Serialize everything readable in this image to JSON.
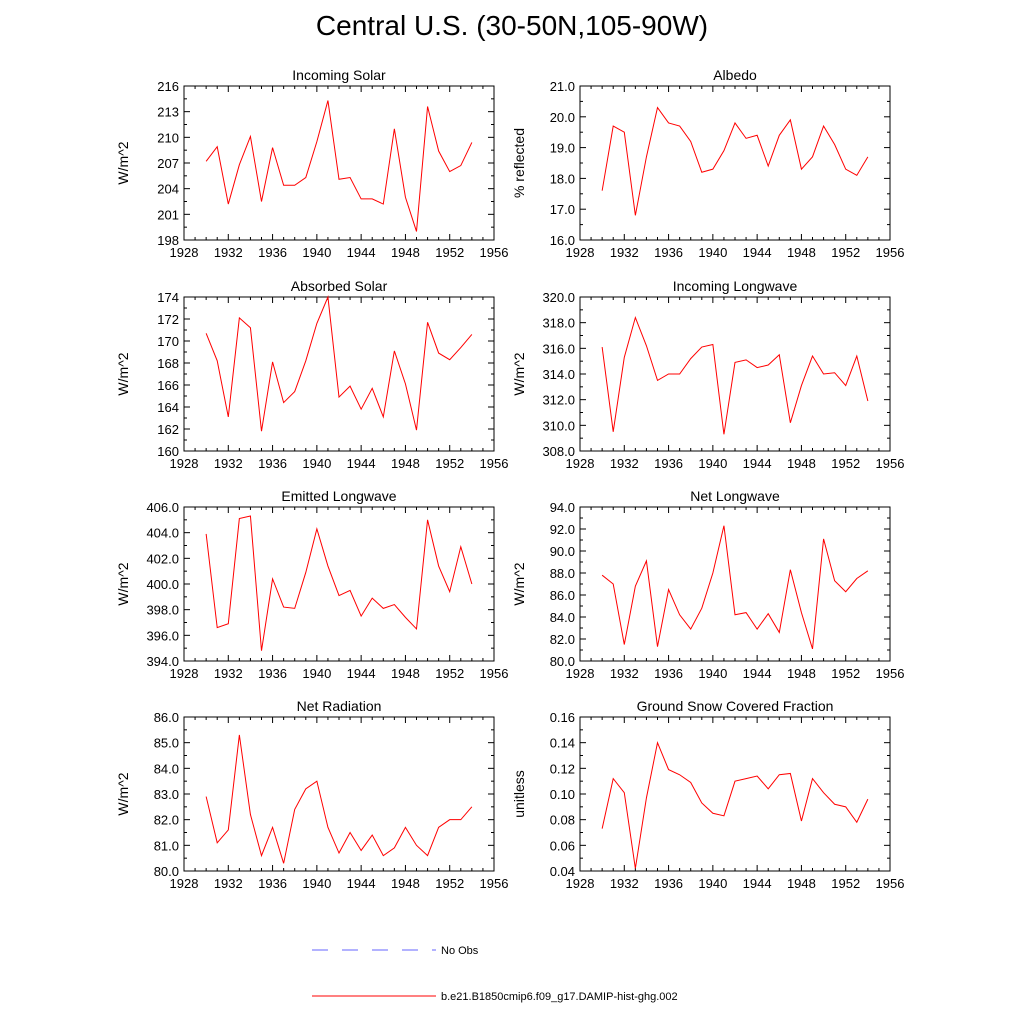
{
  "figure": {
    "title": "Central U.S. (30-50N,105-90W)"
  },
  "legend": {
    "entries": [
      {
        "label": "No Obs",
        "color": "#6666ff",
        "style": "dashed"
      },
      {
        "label": "b.e21.B1850cmip6.f09_g17.DAMIP-hist-ghg.002",
        "color": "#ff0000",
        "style": "solid"
      }
    ]
  },
  "chart_data": [
    {
      "type": "line",
      "title": "Incoming Solar",
      "xlabel": "",
      "ylabel": "W/m^2",
      "xlim": [
        1928,
        1956
      ],
      "xticks": [
        1928,
        1932,
        1936,
        1940,
        1944,
        1948,
        1952,
        1956
      ],
      "ylim": [
        198,
        216
      ],
      "yticks": [
        198,
        201,
        204,
        207,
        210,
        213,
        216
      ],
      "ytick_labels": [
        "198",
        "201",
        "204",
        "207",
        "210",
        "213",
        "216"
      ],
      "x": [
        1930,
        1931,
        1932,
        1933,
        1934,
        1935,
        1936,
        1937,
        1938,
        1939,
        1940,
        1941,
        1942,
        1943,
        1944,
        1945,
        1946,
        1947,
        1948,
        1949,
        1950,
        1951,
        1952,
        1953,
        1954
      ],
      "series": [
        {
          "values": [
            207.2,
            208.9,
            202.2,
            206.8,
            210.1,
            202.5,
            208.8,
            204.4,
            204.4,
            205.3,
            209.5,
            214.3,
            205.1,
            205.3,
            202.8,
            202.8,
            202.2,
            211.0,
            203.0,
            199.0,
            213.6,
            208.4,
            206.0,
            206.7,
            209.4
          ],
          "color": "#ff0000"
        }
      ]
    },
    {
      "type": "line",
      "title": "Albedo",
      "xlabel": "",
      "ylabel": "% reflected",
      "xlim": [
        1928,
        1956
      ],
      "xticks": [
        1928,
        1932,
        1936,
        1940,
        1944,
        1948,
        1952,
        1956
      ],
      "ylim": [
        16,
        21
      ],
      "yticks": [
        16,
        17,
        18,
        19,
        20,
        21
      ],
      "ytick_labels": [
        "16.0",
        "17.0",
        "18.0",
        "19.0",
        "20.0",
        "21.0"
      ],
      "x": [
        1930,
        1931,
        1932,
        1933,
        1934,
        1935,
        1936,
        1937,
        1938,
        1939,
        1940,
        1941,
        1942,
        1943,
        1944,
        1945,
        1946,
        1947,
        1948,
        1949,
        1950,
        1951,
        1952,
        1953,
        1954
      ],
      "series": [
        {
          "values": [
            17.6,
            19.7,
            19.5,
            16.8,
            18.7,
            20.3,
            19.8,
            19.7,
            19.2,
            18.2,
            18.3,
            18.9,
            19.8,
            19.3,
            19.4,
            18.4,
            19.4,
            19.9,
            18.3,
            18.7,
            19.7,
            19.1,
            18.3,
            18.1,
            18.7
          ],
          "color": "#ff0000"
        }
      ]
    },
    {
      "type": "line",
      "title": "Absorbed Solar",
      "xlabel": "",
      "ylabel": "W/m^2",
      "xlim": [
        1928,
        1956
      ],
      "xticks": [
        1928,
        1932,
        1936,
        1940,
        1944,
        1948,
        1952,
        1956
      ],
      "ylim": [
        160,
        174
      ],
      "yticks": [
        160,
        162,
        164,
        166,
        168,
        170,
        172,
        174
      ],
      "ytick_labels": [
        "160",
        "162",
        "164",
        "166",
        "168",
        "170",
        "172",
        "174"
      ],
      "x": [
        1930,
        1931,
        1932,
        1933,
        1934,
        1935,
        1936,
        1937,
        1938,
        1939,
        1940,
        1941,
        1942,
        1943,
        1944,
        1945,
        1946,
        1947,
        1948,
        1949,
        1950,
        1951,
        1952,
        1953,
        1954
      ],
      "series": [
        {
          "values": [
            170.7,
            168.2,
            163.1,
            172.1,
            171.2,
            161.8,
            168.1,
            164.4,
            165.4,
            168.2,
            171.6,
            174.0,
            164.9,
            165.9,
            163.8,
            165.7,
            163.1,
            169.1,
            166.1,
            161.9,
            171.7,
            168.9,
            168.3,
            169.4,
            170.6
          ],
          "color": "#ff0000"
        }
      ]
    },
    {
      "type": "line",
      "title": "Incoming Longwave",
      "xlabel": "",
      "ylabel": "W/m^2",
      "xlim": [
        1928,
        1956
      ],
      "xticks": [
        1928,
        1932,
        1936,
        1940,
        1944,
        1948,
        1952,
        1956
      ],
      "ylim": [
        308,
        320
      ],
      "yticks": [
        308,
        310,
        312,
        314,
        316,
        318,
        320
      ],
      "ytick_labels": [
        "308.0",
        "310.0",
        "312.0",
        "314.0",
        "316.0",
        "318.0",
        "320.0"
      ],
      "x": [
        1930,
        1931,
        1932,
        1933,
        1934,
        1935,
        1936,
        1937,
        1938,
        1939,
        1940,
        1941,
        1942,
        1943,
        1944,
        1945,
        1946,
        1947,
        1948,
        1949,
        1950,
        1951,
        1952,
        1953,
        1954
      ],
      "series": [
        {
          "values": [
            316.1,
            309.5,
            315.3,
            318.4,
            316.2,
            313.5,
            314.0,
            314.0,
            315.2,
            316.1,
            316.3,
            309.3,
            314.9,
            315.1,
            314.5,
            314.7,
            315.5,
            310.2,
            313.1,
            315.4,
            314.0,
            314.1,
            313.1,
            315.4,
            311.9
          ],
          "color": "#ff0000"
        }
      ]
    },
    {
      "type": "line",
      "title": "Emitted Longwave",
      "xlabel": "",
      "ylabel": "W/m^2",
      "xlim": [
        1928,
        1956
      ],
      "xticks": [
        1928,
        1932,
        1936,
        1940,
        1944,
        1948,
        1952,
        1956
      ],
      "ylim": [
        394,
        406
      ],
      "yticks": [
        394,
        396,
        398,
        400,
        402,
        404,
        406
      ],
      "ytick_labels": [
        "394.0",
        "396.0",
        "398.0",
        "400.0",
        "402.0",
        "404.0",
        "406.0"
      ],
      "x": [
        1930,
        1931,
        1932,
        1933,
        1934,
        1935,
        1936,
        1937,
        1938,
        1939,
        1940,
        1941,
        1942,
        1943,
        1944,
        1945,
        1946,
        1947,
        1948,
        1949,
        1950,
        1951,
        1952,
        1953,
        1954
      ],
      "series": [
        {
          "values": [
            403.9,
            396.6,
            396.9,
            405.1,
            405.3,
            394.8,
            400.4,
            398.2,
            398.1,
            400.9,
            404.3,
            401.4,
            399.1,
            399.5,
            397.5,
            398.9,
            398.1,
            398.4,
            397.4,
            396.5,
            405.0,
            401.4,
            399.4,
            402.9,
            400.0
          ],
          "color": "#ff0000"
        }
      ]
    },
    {
      "type": "line",
      "title": "Net Longwave",
      "xlabel": "",
      "ylabel": "W/m^2",
      "xlim": [
        1928,
        1956
      ],
      "xticks": [
        1928,
        1932,
        1936,
        1940,
        1944,
        1948,
        1952,
        1956
      ],
      "ylim": [
        80,
        94
      ],
      "yticks": [
        80,
        82,
        84,
        86,
        88,
        90,
        92,
        94
      ],
      "ytick_labels": [
        "80.0",
        "82.0",
        "84.0",
        "86.0",
        "88.0",
        "90.0",
        "92.0",
        "94.0"
      ],
      "x": [
        1930,
        1931,
        1932,
        1933,
        1934,
        1935,
        1936,
        1937,
        1938,
        1939,
        1940,
        1941,
        1942,
        1943,
        1944,
        1945,
        1946,
        1947,
        1948,
        1949,
        1950,
        1951,
        1952,
        1953,
        1954
      ],
      "series": [
        {
          "values": [
            87.8,
            87.0,
            81.5,
            86.8,
            89.1,
            81.3,
            86.5,
            84.2,
            82.9,
            84.8,
            88.0,
            92.3,
            84.2,
            84.4,
            82.9,
            84.3,
            82.6,
            88.3,
            84.4,
            81.1,
            91.1,
            87.3,
            86.3,
            87.5,
            88.2
          ],
          "color": "#ff0000"
        }
      ]
    },
    {
      "type": "line",
      "title": "Net Radiation",
      "xlabel": "",
      "ylabel": "W/m^2",
      "xlim": [
        1928,
        1956
      ],
      "xticks": [
        1928,
        1932,
        1936,
        1940,
        1944,
        1948,
        1952,
        1956
      ],
      "ylim": [
        80,
        86
      ],
      "yticks": [
        80,
        81,
        82,
        83,
        84,
        85,
        86
      ],
      "ytick_labels": [
        "80.0",
        "81.0",
        "82.0",
        "83.0",
        "84.0",
        "85.0",
        "86.0"
      ],
      "x": [
        1930,
        1931,
        1932,
        1933,
        1934,
        1935,
        1936,
        1937,
        1938,
        1939,
        1940,
        1941,
        1942,
        1943,
        1944,
        1945,
        1946,
        1947,
        1948,
        1949,
        1950,
        1951,
        1952,
        1953,
        1954
      ],
      "series": [
        {
          "values": [
            82.9,
            81.1,
            81.6,
            85.3,
            82.2,
            80.6,
            81.7,
            80.3,
            82.4,
            83.2,
            83.5,
            81.7,
            80.7,
            81.5,
            80.8,
            81.4,
            80.6,
            80.9,
            81.7,
            81.0,
            80.6,
            81.7,
            82.0,
            82.0,
            82.5
          ],
          "color": "#ff0000"
        }
      ]
    },
    {
      "type": "line",
      "title": "Ground Snow Covered Fraction",
      "xlabel": "",
      "ylabel": "unitless",
      "xlim": [
        1928,
        1956
      ],
      "xticks": [
        1928,
        1932,
        1936,
        1940,
        1944,
        1948,
        1952,
        1956
      ],
      "ylim": [
        0.04,
        0.16
      ],
      "yticks": [
        0.04,
        0.06,
        0.08,
        0.1,
        0.12,
        0.14,
        0.16
      ],
      "ytick_labels": [
        "0.04",
        "0.06",
        "0.08",
        "0.10",
        "0.12",
        "0.14",
        "0.16"
      ],
      "x": [
        1930,
        1931,
        1932,
        1933,
        1934,
        1935,
        1936,
        1937,
        1938,
        1939,
        1940,
        1941,
        1942,
        1943,
        1944,
        1945,
        1946,
        1947,
        1948,
        1949,
        1950,
        1951,
        1952,
        1953,
        1954
      ],
      "series": [
        {
          "values": [
            0.073,
            0.112,
            0.101,
            0.042,
            0.097,
            0.14,
            0.119,
            0.115,
            0.109,
            0.093,
            0.085,
            0.083,
            0.11,
            0.112,
            0.114,
            0.104,
            0.115,
            0.116,
            0.079,
            0.112,
            0.101,
            0.092,
            0.09,
            0.078,
            0.096
          ],
          "color": "#ff0000"
        }
      ]
    }
  ]
}
